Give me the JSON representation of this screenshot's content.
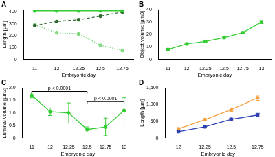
{
  "chart_data": [
    {
      "type": "line",
      "title": "A",
      "xlabel": "Embryonic day",
      "ylabel": "Length [µm]",
      "categories": [
        "11",
        "12",
        "12.25",
        "12.5",
        "12.75"
      ],
      "series": [
        {
          "color": "#33cc33",
          "line_style": "solid",
          "marker": "circle",
          "values": [
            410,
            410,
            410,
            410,
            410
          ]
        },
        {
          "color": "#2f6b2f",
          "line_style": "dashed",
          "marker": "circle",
          "values": [
            285,
            320,
            335,
            365,
            400
          ]
        },
        {
          "color": "#7fd97f",
          "line_style": "dotted",
          "marker": "circle",
          "values": [
            290,
            225,
            215,
            120,
            75
          ]
        }
      ],
      "ylim": [
        0,
        420
      ],
      "yticks": [
        0,
        100,
        200,
        300,
        400
      ],
      "grid": false
    },
    {
      "type": "line",
      "title": "B",
      "xlabel": "Embryonic day",
      "ylabel": "Object volume [µm3]",
      "categories": [
        "11",
        "12",
        "12.25",
        "12.5",
        "12.75",
        "13"
      ],
      "series": [
        {
          "color": "#33cc33",
          "line_style": "solid",
          "marker": "circle",
          "values": [
            8,
            12.5,
            14.5,
            17.5,
            21.5,
            30
          ],
          "errors": [
            0.8,
            0.5,
            0.6,
            0.6,
            0.6,
            1.2
          ]
        }
      ],
      "ylim": [
        0,
        40
      ],
      "yticks": [
        0,
        10,
        20,
        30,
        40
      ],
      "grid": false
    },
    {
      "type": "line",
      "title": "C",
      "xlabel": "Embryonic day",
      "ylabel": "Luminal volume [µm3]",
      "categories": [
        "11",
        "12",
        "12.25",
        "12.5",
        "12.75",
        "13"
      ],
      "series": [
        {
          "color": "#33cc33",
          "line_style": "solid",
          "marker": "circle",
          "values": [
            1.7,
            1.05,
            1.0,
            0.35,
            0.45,
            1.1
          ],
          "errors": [
            0.1,
            0.15,
            0.4,
            0.1,
            0.35,
            0.5
          ]
        }
      ],
      "annotations": [
        {
          "text": "p < 0.0001",
          "from": "11",
          "to": "12.5",
          "y": 1.85
        },
        {
          "text": "p < 0.0001",
          "from": "12.5",
          "to": "13",
          "y": 1.45
        }
      ],
      "ylim": [
        0,
        2
      ],
      "yticks": [
        0,
        {
          "value": 0.5,
          "label": "0.5"
        },
        {
          "value": 1,
          "label": "1.0"
        },
        {
          "value": 1.5,
          "label": "1.5"
        },
        {
          "value": 2,
          "label": "2.0"
        }
      ],
      "grid": false
    },
    {
      "type": "line",
      "title": "D",
      "xlabel": "Embryonic day",
      "ylabel": "Length [µm]",
      "categories": [
        "12",
        "12.25",
        "12.5",
        "12.75"
      ],
      "series": [
        {
          "color": "#f5a040",
          "line_style": "solid",
          "marker": "circle",
          "values": [
            280,
            550,
            850,
            1200
          ],
          "errors": [
            30,
            30,
            50,
            80
          ]
        },
        {
          "color": "#2b3fb0",
          "line_style": "solid",
          "marker": "circle",
          "values": [
            200,
            340,
            560,
            690
          ],
          "errors": [
            20,
            20,
            40,
            50
          ]
        }
      ],
      "ylim": [
        0,
        1500
      ],
      "yticks": [
        0,
        500,
        {
          "value": 1000,
          "label": "1,000"
        },
        {
          "value": 1500,
          "label": "1,500"
        }
      ],
      "grid": false
    }
  ]
}
